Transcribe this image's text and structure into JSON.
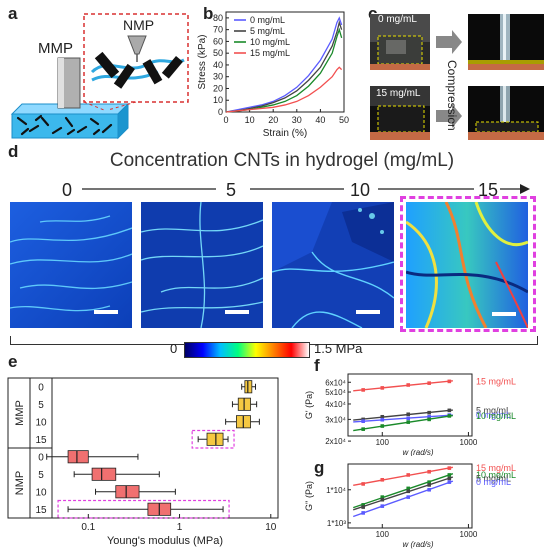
{
  "panels": {
    "a": {
      "label": "a",
      "mmp_text": "MMP",
      "nmp_text": "NMP"
    },
    "b": {
      "label": "b"
    },
    "c": {
      "label": "c",
      "top_label": "0 mg/mL",
      "bottom_label": "15 mg/mL",
      "compression_text": "Compression"
    },
    "d": {
      "label": "d",
      "title": "Concentration CNTs in hydrogel (mg/mL)",
      "concentrations": [
        "0",
        "5",
        "10",
        "15"
      ],
      "colorbar_min": "0",
      "colorbar_max": "1.5 MPa"
    },
    "e": {
      "label": "e"
    },
    "f": {
      "label": "f"
    },
    "g": {
      "label": "g"
    }
  },
  "colors": {
    "c0": "#5b5bff",
    "c5": "#444444",
    "c10": "#1a8a2a",
    "c15": "#f25050",
    "magenta": "#e040e0",
    "red_box": "#d93030"
  },
  "chart_data": [
    {
      "type": "line",
      "panel": "b",
      "xlabel": "Strain (%)",
      "ylabel": "Stress (kPa)",
      "xlim": [
        0,
        50
      ],
      "ylim": [
        0,
        85
      ],
      "xticks": [
        "0",
        "10",
        "20",
        "30",
        "40",
        "50"
      ],
      "yticks": [
        "0",
        "10",
        "20",
        "30",
        "40",
        "50",
        "60",
        "70",
        "80"
      ],
      "legend": "top-left",
      "series": [
        {
          "name": "0 mg/mL",
          "color": "#5b5bff",
          "x": [
            0,
            5,
            10,
            15,
            20,
            25,
            30,
            35,
            40,
            45,
            47,
            48,
            49
          ],
          "y": [
            0,
            2,
            4,
            6,
            9,
            14,
            21,
            31,
            44,
            62,
            76,
            80,
            74
          ]
        },
        {
          "name": "5 mg/mL",
          "color": "#444444",
          "x": [
            0,
            5,
            10,
            15,
            20,
            25,
            30,
            35,
            40,
            45,
            47,
            48,
            49
          ],
          "y": [
            0,
            1,
            3,
            5,
            8,
            12,
            18,
            27,
            38,
            56,
            68,
            76,
            70
          ]
        },
        {
          "name": "10 mg/mL",
          "color": "#1a8a2a",
          "x": [
            0,
            5,
            10,
            15,
            20,
            25,
            30,
            35,
            40,
            45,
            47,
            48,
            49
          ],
          "y": [
            0,
            1,
            2,
            4,
            6,
            9,
            14,
            22,
            33,
            50,
            64,
            70,
            63
          ]
        },
        {
          "name": "15 mg/mL",
          "color": "#f25050",
          "x": [
            0,
            5,
            10,
            15,
            20,
            25,
            30,
            35,
            40,
            45,
            47,
            48,
            49
          ],
          "y": [
            0,
            1,
            2,
            3,
            4,
            6,
            9,
            14,
            21,
            30,
            36,
            38,
            36
          ]
        }
      ]
    },
    {
      "type": "box",
      "panel": "e",
      "xlabel": "Young's modulus (MPa)",
      "xscale": "log",
      "xlim": [
        0.04,
        12
      ],
      "xticks": [
        "0.1",
        "1",
        "10"
      ],
      "group_labels": [
        "MMP",
        "NMP"
      ],
      "categories": [
        "0",
        "5",
        "10",
        "15"
      ],
      "groups": [
        {
          "name": "MMP",
          "color": "#f5c842",
          "boxes": [
            {
              "cat": "0",
              "min": 4.8,
              "q1": 5.2,
              "median": 5.6,
              "q3": 6.2,
              "max": 6.8
            },
            {
              "cat": "5",
              "min": 3.8,
              "q1": 4.4,
              "median": 5.1,
              "q3": 6.0,
              "max": 7.0
            },
            {
              "cat": "10",
              "min": 3.2,
              "q1": 4.2,
              "median": 5.0,
              "q3": 6.0,
              "max": 7.5
            },
            {
              "cat": "15",
              "min": 1.6,
              "q1": 2.0,
              "median": 2.5,
              "q3": 3.0,
              "max": 3.4
            }
          ]
        },
        {
          "name": "NMP",
          "color": "#f07070",
          "boxes": [
            {
              "cat": "0",
              "min": 0.035,
              "q1": 0.06,
              "median": 0.075,
              "q3": 0.1,
              "max": 0.35
            },
            {
              "cat": "5",
              "min": 0.07,
              "q1": 0.11,
              "median": 0.14,
              "q3": 0.2,
              "max": 0.6
            },
            {
              "cat": "10",
              "min": 0.12,
              "q1": 0.2,
              "median": 0.26,
              "q3": 0.36,
              "max": 0.9
            },
            {
              "cat": "15",
              "min": 0.06,
              "q1": 0.45,
              "median": 0.6,
              "q3": 0.8,
              "max": 3.0
            }
          ]
        }
      ]
    },
    {
      "type": "scatter",
      "panel": "f",
      "xlabel": "w (rad/s)",
      "ylabel": "G' (Pa)",
      "xscale": "log",
      "yscale": "log",
      "xlim": [
        40,
        1100
      ],
      "ylim": [
        22000.0,
        70000.0
      ],
      "xticks": [
        "100",
        "1000"
      ],
      "yticks": [
        "2x10⁴",
        "3x10⁴",
        "4x10⁴",
        "5x10⁴",
        "6x10⁴"
      ],
      "series": [
        {
          "name": "15 mg/mL",
          "color": "#f25050",
          "x": [
            60,
            100,
            200,
            350,
            600
          ],
          "y": [
            52000,
            54000,
            57000,
            59000,
            61000
          ]
        },
        {
          "name": "5 mg/mL",
          "color": "#444444",
          "x": [
            60,
            100,
            200,
            350,
            600
          ],
          "y": [
            30000,
            31500,
            33000,
            34000,
            35500
          ]
        },
        {
          "name": "0 mg/mL",
          "color": "#5b5bff",
          "x": [
            60,
            100,
            200,
            350,
            600
          ],
          "y": [
            29000,
            29800,
            30600,
            31500,
            32500
          ]
        },
        {
          "name": "10 mg/mL",
          "color": "#1a8a2a",
          "x": [
            60,
            100,
            200,
            350,
            600
          ],
          "y": [
            25000,
            26500,
            28500,
            30000,
            32000
          ]
        }
      ]
    },
    {
      "type": "scatter",
      "panel": "g",
      "xlabel": "w (rad/s)",
      "ylabel": "G'' (Pa)",
      "xscale": "log",
      "yscale": "log",
      "xlim": [
        40,
        1100
      ],
      "ylim": [
        700,
        60000
      ],
      "xticks": [
        "100",
        "1000"
      ],
      "yticks": [
        "1*10³",
        "1*10⁴"
      ],
      "series": [
        {
          "name": "15 mg/mL",
          "color": "#f25050",
          "x": [
            60,
            100,
            200,
            350,
            600
          ],
          "y": [
            15000,
            20000,
            28000,
            35000,
            45000
          ]
        },
        {
          "name": "10 mg/mL",
          "color": "#1a8a2a",
          "x": [
            60,
            100,
            200,
            350,
            600
          ],
          "y": [
            3500,
            6000,
            11000,
            17000,
            28000
          ]
        },
        {
          "name": "5 mg/mL",
          "color": "#444444",
          "x": [
            60,
            100,
            200,
            350,
            600
          ],
          "y": [
            3000,
            5000,
            9000,
            14000,
            22000
          ]
        },
        {
          "name": "0 mg/mL",
          "color": "#5b5bff",
          "x": [
            60,
            100,
            200,
            350,
            600
          ],
          "y": [
            2000,
            3200,
            6000,
            10000,
            17000
          ]
        }
      ]
    }
  ]
}
